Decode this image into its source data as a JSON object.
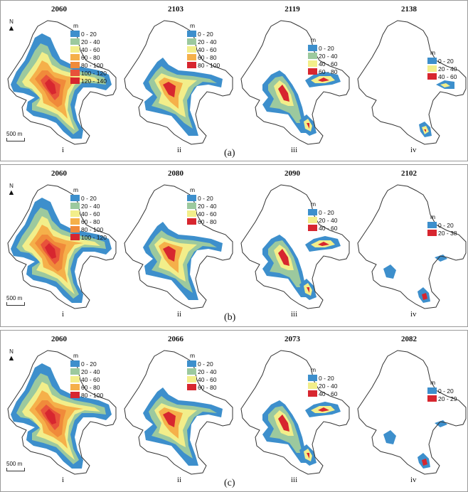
{
  "colors": {
    "c0_20": "#3d8fcc",
    "c20_40": "#9cc99e",
    "c40_60": "#f2ee8a",
    "c60_80": "#f5b04a",
    "c80_100": "#f08a3a",
    "c100_120": "#e8523a",
    "c120_140": "#d7262f",
    "outline": "#333333"
  },
  "map_labels": {
    "north": "N",
    "scale": "500 m"
  },
  "panels": [
    {
      "label": "(a)",
      "maps": [
        {
          "year": "2060",
          "roman": "i",
          "unit": "m",
          "legend": [
            "0 - 20",
            "20 - 40",
            "40 - 60",
            "60 - 80",
            "80 - 100",
            "100 - 120",
            "120 - 140"
          ]
        },
        {
          "year": "2103",
          "roman": "ii",
          "unit": "m",
          "legend": [
            "0 - 20",
            "20 - 40",
            "40 - 60",
            "60 - 80",
            "80 - 100"
          ]
        },
        {
          "year": "2119",
          "roman": "iii",
          "unit": "m",
          "legend": [
            "0 - 20",
            "20 - 40",
            "40 - 60",
            "60 - 80"
          ]
        },
        {
          "year": "2138",
          "roman": "iv",
          "unit": "m",
          "legend": [
            "0 - 20",
            "20 - 40",
            "40 - 60"
          ]
        }
      ]
    },
    {
      "label": "(b)",
      "maps": [
        {
          "year": "2060",
          "roman": "i",
          "unit": "m",
          "legend": [
            "0 - 20",
            "20 - 40",
            "40 - 60",
            "60 - 80",
            "80 - 100",
            "100 - 120"
          ]
        },
        {
          "year": "2080",
          "roman": "ii",
          "unit": "m",
          "legend": [
            "0 - 20",
            "20 - 40",
            "40 - 60",
            "60 - 80"
          ]
        },
        {
          "year": "2090",
          "roman": "iii",
          "unit": "m",
          "legend": [
            "0 - 20",
            "20 - 40",
            "40 - 60"
          ]
        },
        {
          "year": "2102",
          "roman": "iv",
          "unit": "m",
          "legend": [
            "0 - 20",
            "20 - 38"
          ]
        }
      ]
    },
    {
      "label": "(c)",
      "maps": [
        {
          "year": "2060",
          "roman": "i",
          "unit": "m",
          "legend": [
            "0 - 20",
            "20 - 40",
            "40 - 60",
            "60 - 80",
            "80 - 100"
          ]
        },
        {
          "year": "2066",
          "roman": "ii",
          "unit": "m",
          "legend": [
            "0 - 20",
            "20 - 40",
            "40 - 60",
            "60 - 80"
          ]
        },
        {
          "year": "2073",
          "roman": "iii",
          "unit": "m",
          "legend": [
            "0 - 20",
            "20 - 40",
            "40 - 60"
          ]
        },
        {
          "year": "2082",
          "roman": "iv",
          "unit": "m",
          "legend": [
            "0 - 20",
            "20 - 29"
          ]
        }
      ]
    }
  ]
}
